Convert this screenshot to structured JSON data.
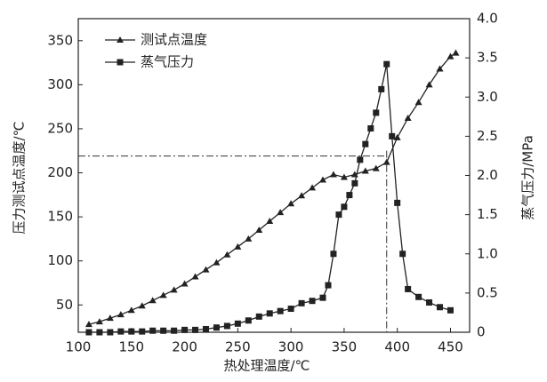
{
  "chart_data": {
    "type": "line",
    "x_label": "热处理温度/℃",
    "y_label": "压力测试点温度/℃",
    "y2_label": "蒸气压力/MPa",
    "xlim": [
      100,
      468
    ],
    "xticks": [
      100,
      150,
      200,
      250,
      300,
      350,
      400,
      450
    ],
    "ylim": [
      19,
      375
    ],
    "yticks": [
      50,
      100,
      150,
      200,
      250,
      300,
      350
    ],
    "y2lim": [
      0,
      4.0
    ],
    "y2ticks": [
      0,
      0.5,
      {
        "value": 1.0,
        "label": "1.0"
      },
      1.5,
      {
        "value": 2.0,
        "label": "2.0"
      },
      2.5,
      {
        "value": 3.0,
        "label": "3.0"
      },
      3.5,
      {
        "value": 4.0,
        "label": "4.0"
      }
    ],
    "legend": "upper left",
    "ref_lines": {
      "x": 390,
      "y": 219
    },
    "series": [
      {
        "name": "测试点温度",
        "color": "#222222",
        "marker": "triangle",
        "x": [
          110,
          120,
          130,
          140,
          150,
          160,
          170,
          180,
          190,
          200,
          210,
          220,
          230,
          240,
          250,
          260,
          270,
          280,
          290,
          300,
          310,
          320,
          330,
          340,
          350,
          360,
          370,
          380,
          390,
          400,
          410,
          420,
          430,
          440,
          450,
          455
        ],
        "values": [
          28,
          31,
          35,
          39,
          44,
          49,
          55,
          61,
          67,
          74,
          82,
          90,
          98,
          107,
          116,
          125,
          135,
          145,
          155,
          165,
          174,
          183,
          192,
          198,
          195,
          198,
          202,
          205,
          212,
          240,
          262,
          280,
          300,
          318,
          332,
          336
        ]
      },
      {
        "name": "蒸气压力",
        "color": "#222222",
        "marker": "square",
        "axis": "y2",
        "x": [
          110,
          120,
          130,
          140,
          150,
          160,
          170,
          180,
          190,
          200,
          210,
          220,
          230,
          240,
          250,
          260,
          270,
          280,
          290,
          300,
          310,
          320,
          330,
          335,
          340,
          345,
          350,
          355,
          360,
          365,
          370,
          375,
          380,
          385,
          390,
          395,
          400,
          405,
          410,
          420,
          430,
          440,
          450
        ],
        "values": [
          0,
          0,
          0,
          0.01,
          0.01,
          0.01,
          0.02,
          0.02,
          0.02,
          0.03,
          0.03,
          0.04,
          0.06,
          0.08,
          0.11,
          0.15,
          0.2,
          0.24,
          0.27,
          0.3,
          0.37,
          0.4,
          0.44,
          0.6,
          1.0,
          1.5,
          1.6,
          1.75,
          1.9,
          2.2,
          2.4,
          2.6,
          2.8,
          3.1,
          3.42,
          2.5,
          1.65,
          1.0,
          0.55,
          0.45,
          0.38,
          0.32,
          0.28
        ]
      }
    ]
  }
}
